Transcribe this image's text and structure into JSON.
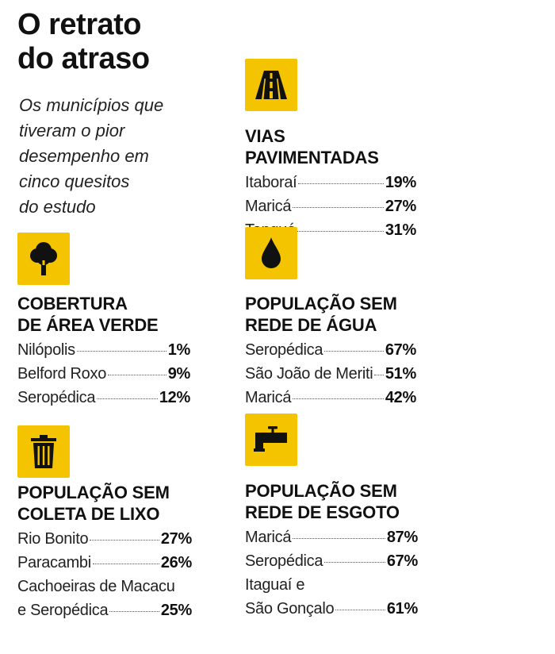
{
  "title": {
    "line1": "O retrato",
    "line2": "do atraso"
  },
  "subtitle": {
    "lines": [
      "Os municípios que",
      "tiveram o pior",
      "desempenho em",
      "cinco quesitos",
      "do estudo"
    ]
  },
  "colors": {
    "accent": "#f5c400",
    "text": "#111111"
  },
  "sections": {
    "vias": {
      "icon": "road-icon",
      "heading": [
        "VIAS PAVIMENTADAS"
      ],
      "rows": [
        {
          "name": "Itaboraí",
          "value": "19%"
        },
        {
          "name": "Maricá",
          "value": "27%"
        },
        {
          "name": "Tanguá",
          "value": "31%"
        }
      ]
    },
    "verde": {
      "icon": "tree-icon",
      "heading": [
        "COBERTURA",
        "DE ÁREA VERDE"
      ],
      "rows": [
        {
          "name": "Nilópolis",
          "value": "1%"
        },
        {
          "name": "Belford Roxo",
          "value": "9%"
        },
        {
          "name": "Seropédica",
          "value": "12%"
        }
      ]
    },
    "agua": {
      "icon": "water-drop-icon",
      "heading": [
        "POPULAÇÃO SEM",
        "REDE DE ÁGUA"
      ],
      "rows": [
        {
          "name": "Seropédica",
          "value": "67%"
        },
        {
          "name": "São João de Meriti",
          "value": "51%"
        },
        {
          "name": "Maricá",
          "value": "42%"
        }
      ]
    },
    "lixo": {
      "icon": "trash-can-icon",
      "heading": [
        "POPULAÇÃO SEM",
        "COLETA DE LIXO"
      ],
      "rows": [
        {
          "name": "Rio Bonito",
          "value": "27%"
        },
        {
          "name": "Paracambi",
          "value": "26%"
        }
      ],
      "multi": {
        "pre": "Cachoeiras de Macacu",
        "name": "e Seropédica",
        "value": "25%"
      }
    },
    "esgoto": {
      "icon": "faucet-icon",
      "heading": [
        "POPULAÇÃO SEM",
        "REDE DE ESGOTO"
      ],
      "rows": [
        {
          "name": "Maricá",
          "value": "87%"
        },
        {
          "name": "Seropédica",
          "value": "67%"
        }
      ],
      "multi": {
        "pre": "Itaguaí e",
        "name": "São Gonçalo",
        "value": "61%"
      }
    }
  }
}
